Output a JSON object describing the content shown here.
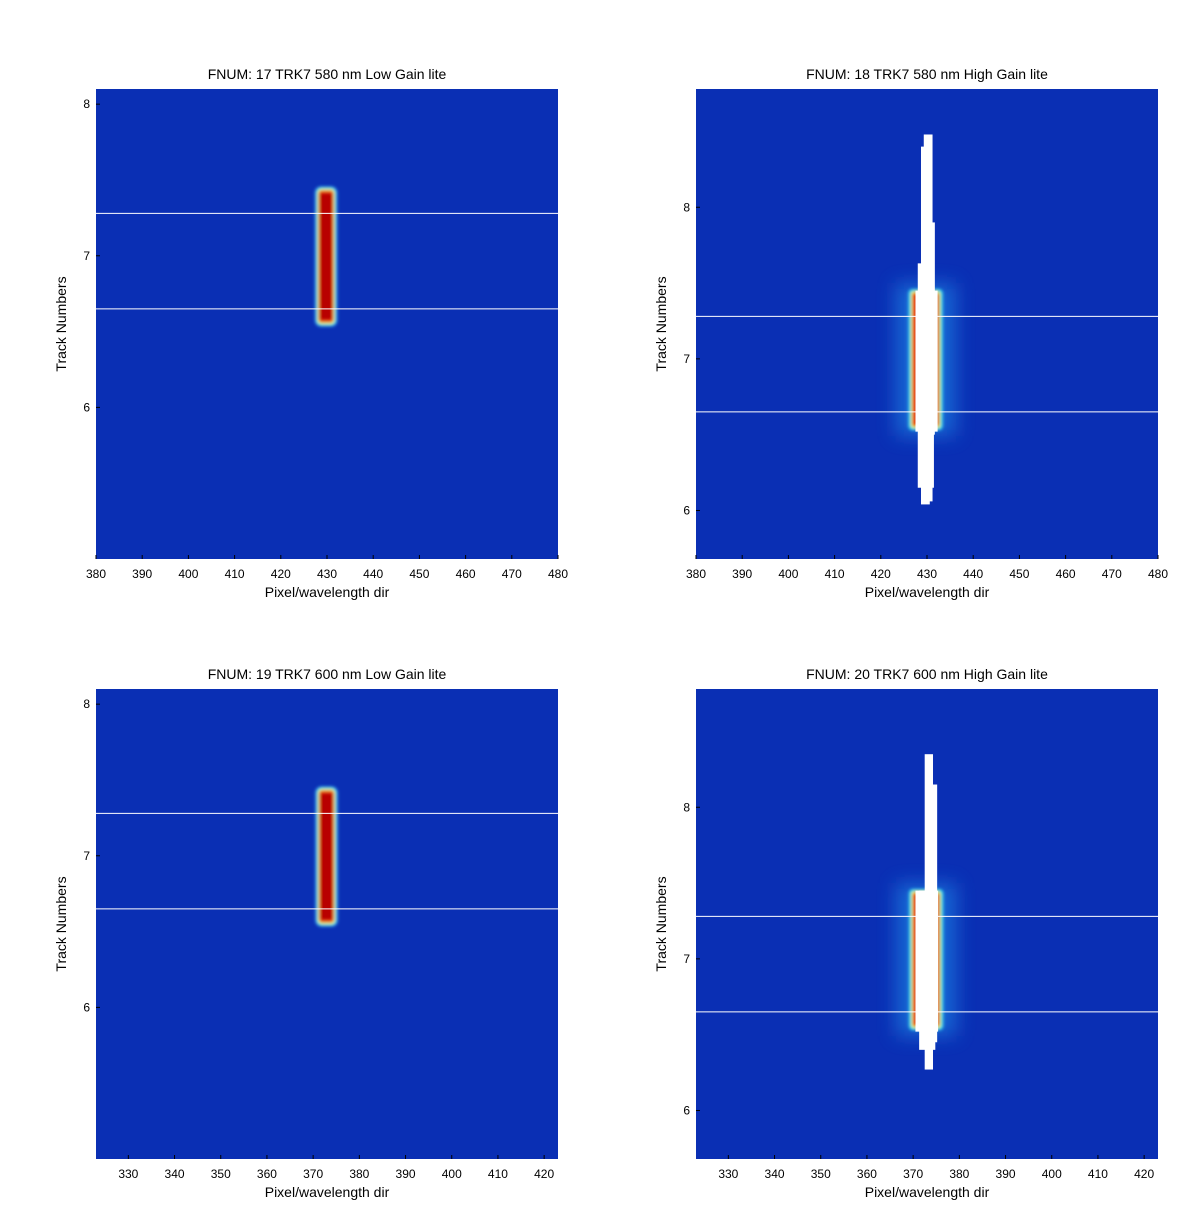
{
  "chart_data": [
    {
      "type": "heatmap",
      "title": "FNUM: 17 TRK7 580 nm Low Gain lite",
      "xlabel": "Pixel/wavelength dir",
      "ylabel": "Track Numbers",
      "xlim": [
        380,
        480
      ],
      "ylim": [
        5.0,
        8.1
      ],
      "xticks": [
        "380",
        "390",
        "400",
        "410",
        "420",
        "430",
        "440",
        "450",
        "460",
        "470",
        "480"
      ],
      "yticks": [
        "6",
        "7",
        "8"
      ],
      "colormap": "jet",
      "background_color": "#0a2fb4",
      "hlines": [
        6.65,
        7.28
      ],
      "spot": {
        "x": [
          427.7,
          431.9
        ],
        "y": [
          6.54,
          7.45
        ],
        "saturated": false
      }
    },
    {
      "type": "heatmap",
      "title": "FNUM: 18 TRK7 580 nm High Gain lite",
      "xlabel": "Pixel/wavelength dir",
      "ylabel": "Track Numbers",
      "xlim": [
        380,
        480
      ],
      "ylim": [
        5.68,
        8.78
      ],
      "xticks": [
        "380",
        "390",
        "400",
        "410",
        "420",
        "430",
        "440",
        "450",
        "460",
        "470",
        "480"
      ],
      "yticks": [
        "6",
        "7",
        "8"
      ],
      "colormap": "jet",
      "background_color": "#0a2fb4",
      "hlines": [
        6.65,
        7.28
      ],
      "spot": {
        "x": [
          426.2,
          433.2
        ],
        "y": [
          6.53,
          7.46
        ],
        "saturated": true
      },
      "saturated_region": [
        {
          "x": [
            427.5,
            432.3
          ],
          "y": [
            6.52,
            7.45
          ]
        },
        {
          "x": [
            428.0,
            431.5
          ],
          "y": [
            6.15,
            7.63
          ]
        },
        {
          "x": [
            428.7,
            430.6
          ],
          "y": [
            6.04,
            8.4
          ]
        },
        {
          "x": [
            429.3,
            431.2
          ],
          "y": [
            6.06,
            8.48
          ]
        },
        {
          "x": [
            430.5,
            431.7
          ],
          "y": [
            6.5,
            7.9
          ]
        }
      ]
    },
    {
      "type": "heatmap",
      "title": "FNUM: 19 TRK7 600 nm Low Gain lite",
      "xlabel": "Pixel/wavelength dir",
      "ylabel": "Track Numbers",
      "xlim": [
        323,
        423
      ],
      "ylim": [
        5.0,
        8.1
      ],
      "xticks": [
        "330",
        "340",
        "350",
        "360",
        "370",
        "380",
        "390",
        "400",
        "410",
        "420"
      ],
      "yticks": [
        "6",
        "7",
        "8"
      ],
      "colormap": "jet",
      "background_color": "#0a2fb4",
      "hlines": [
        6.65,
        7.28
      ],
      "spot": {
        "x": [
          370.8,
          375.0
        ],
        "y": [
          6.54,
          7.45
        ],
        "saturated": false
      }
    },
    {
      "type": "heatmap",
      "title": "FNUM: 20 TRK7 600 nm High Gain lite",
      "xlabel": "Pixel/wavelength dir",
      "ylabel": "Track Numbers",
      "xlim": [
        323,
        423
      ],
      "ylim": [
        5.68,
        8.78
      ],
      "xticks": [
        "330",
        "340",
        "350",
        "360",
        "370",
        "380",
        "390",
        "400",
        "410",
        "420"
      ],
      "yticks": [
        "6",
        "7",
        "8"
      ],
      "colormap": "jet",
      "background_color": "#0a2fb4",
      "hlines": [
        6.65,
        7.28
      ],
      "spot": {
        "x": [
          369.3,
          376.3
        ],
        "y": [
          6.53,
          7.46
        ],
        "saturated": true
      },
      "saturated_region": [
        {
          "x": [
            370.5,
            375.4
          ],
          "y": [
            6.52,
            7.45
          ]
        },
        {
          "x": [
            371.3,
            374.8
          ],
          "y": [
            6.4,
            7.45
          ]
        },
        {
          "x": [
            372.5,
            374.3
          ],
          "y": [
            6.27,
            8.35
          ]
        },
        {
          "x": [
            373.5,
            375.2
          ],
          "y": [
            6.45,
            8.15
          ]
        }
      ]
    }
  ]
}
